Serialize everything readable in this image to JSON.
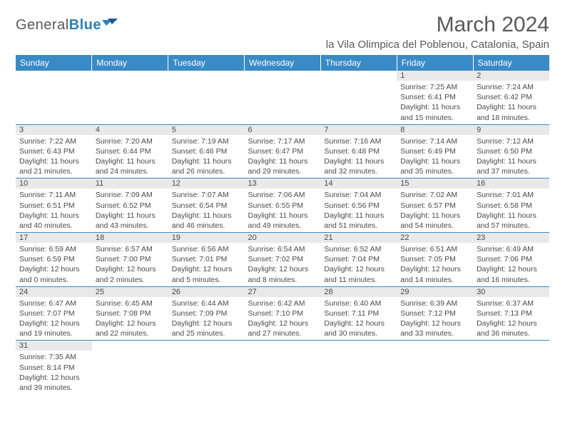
{
  "logo": {
    "text1": "General",
    "text2": "Blue"
  },
  "title": "March 2024",
  "location": "la Vila Olimpica del Poblenou, Catalonia, Spain",
  "dayHeaders": [
    "Sunday",
    "Monday",
    "Tuesday",
    "Wednesday",
    "Thursday",
    "Friday",
    "Saturday"
  ],
  "colors": {
    "headerBg": "#3a8ac5",
    "headerText": "#ffffff",
    "dayNumBg": "#e9e9e9",
    "borderColor": "#3a8ac5",
    "textColor": "#4a4a4a",
    "titleColor": "#5a5a5a",
    "logoBlue": "#2b7fbf"
  },
  "layout": {
    "cols": 7,
    "rows": 6,
    "startCol": 5
  },
  "days": [
    {
      "n": 1,
      "sunrise": "7:25 AM",
      "sunset": "6:41 PM",
      "dlh": 11,
      "dlm": 15
    },
    {
      "n": 2,
      "sunrise": "7:24 AM",
      "sunset": "6:42 PM",
      "dlh": 11,
      "dlm": 18
    },
    {
      "n": 3,
      "sunrise": "7:22 AM",
      "sunset": "6:43 PM",
      "dlh": 11,
      "dlm": 21
    },
    {
      "n": 4,
      "sunrise": "7:20 AM",
      "sunset": "6:44 PM",
      "dlh": 11,
      "dlm": 24
    },
    {
      "n": 5,
      "sunrise": "7:19 AM",
      "sunset": "6:46 PM",
      "dlh": 11,
      "dlm": 26
    },
    {
      "n": 6,
      "sunrise": "7:17 AM",
      "sunset": "6:47 PM",
      "dlh": 11,
      "dlm": 29
    },
    {
      "n": 7,
      "sunrise": "7:16 AM",
      "sunset": "6:48 PM",
      "dlh": 11,
      "dlm": 32
    },
    {
      "n": 8,
      "sunrise": "7:14 AM",
      "sunset": "6:49 PM",
      "dlh": 11,
      "dlm": 35
    },
    {
      "n": 9,
      "sunrise": "7:12 AM",
      "sunset": "6:50 PM",
      "dlh": 11,
      "dlm": 37
    },
    {
      "n": 10,
      "sunrise": "7:11 AM",
      "sunset": "6:51 PM",
      "dlh": 11,
      "dlm": 40
    },
    {
      "n": 11,
      "sunrise": "7:09 AM",
      "sunset": "6:52 PM",
      "dlh": 11,
      "dlm": 43
    },
    {
      "n": 12,
      "sunrise": "7:07 AM",
      "sunset": "6:54 PM",
      "dlh": 11,
      "dlm": 46
    },
    {
      "n": 13,
      "sunrise": "7:06 AM",
      "sunset": "6:55 PM",
      "dlh": 11,
      "dlm": 49
    },
    {
      "n": 14,
      "sunrise": "7:04 AM",
      "sunset": "6:56 PM",
      "dlh": 11,
      "dlm": 51
    },
    {
      "n": 15,
      "sunrise": "7:02 AM",
      "sunset": "6:57 PM",
      "dlh": 11,
      "dlm": 54
    },
    {
      "n": 16,
      "sunrise": "7:01 AM",
      "sunset": "6:58 PM",
      "dlh": 11,
      "dlm": 57
    },
    {
      "n": 17,
      "sunrise": "6:59 AM",
      "sunset": "6:59 PM",
      "dlh": 12,
      "dlm": 0
    },
    {
      "n": 18,
      "sunrise": "6:57 AM",
      "sunset": "7:00 PM",
      "dlh": 12,
      "dlm": 2
    },
    {
      "n": 19,
      "sunrise": "6:56 AM",
      "sunset": "7:01 PM",
      "dlh": 12,
      "dlm": 5
    },
    {
      "n": 20,
      "sunrise": "6:54 AM",
      "sunset": "7:02 PM",
      "dlh": 12,
      "dlm": 8
    },
    {
      "n": 21,
      "sunrise": "6:52 AM",
      "sunset": "7:04 PM",
      "dlh": 12,
      "dlm": 11
    },
    {
      "n": 22,
      "sunrise": "6:51 AM",
      "sunset": "7:05 PM",
      "dlh": 12,
      "dlm": 14
    },
    {
      "n": 23,
      "sunrise": "6:49 AM",
      "sunset": "7:06 PM",
      "dlh": 12,
      "dlm": 16
    },
    {
      "n": 24,
      "sunrise": "6:47 AM",
      "sunset": "7:07 PM",
      "dlh": 12,
      "dlm": 19
    },
    {
      "n": 25,
      "sunrise": "6:45 AM",
      "sunset": "7:08 PM",
      "dlh": 12,
      "dlm": 22
    },
    {
      "n": 26,
      "sunrise": "6:44 AM",
      "sunset": "7:09 PM",
      "dlh": 12,
      "dlm": 25
    },
    {
      "n": 27,
      "sunrise": "6:42 AM",
      "sunset": "7:10 PM",
      "dlh": 12,
      "dlm": 27
    },
    {
      "n": 28,
      "sunrise": "6:40 AM",
      "sunset": "7:11 PM",
      "dlh": 12,
      "dlm": 30
    },
    {
      "n": 29,
      "sunrise": "6:39 AM",
      "sunset": "7:12 PM",
      "dlh": 12,
      "dlm": 33
    },
    {
      "n": 30,
      "sunrise": "6:37 AM",
      "sunset": "7:13 PM",
      "dlh": 12,
      "dlm": 36
    },
    {
      "n": 31,
      "sunrise": "7:35 AM",
      "sunset": "8:14 PM",
      "dlh": 12,
      "dlm": 39
    }
  ],
  "labels": {
    "sunrise": "Sunrise:",
    "sunset": "Sunset:",
    "daylight": "Daylight:",
    "hours": "hours",
    "and": "and",
    "minutes": "minutes."
  }
}
